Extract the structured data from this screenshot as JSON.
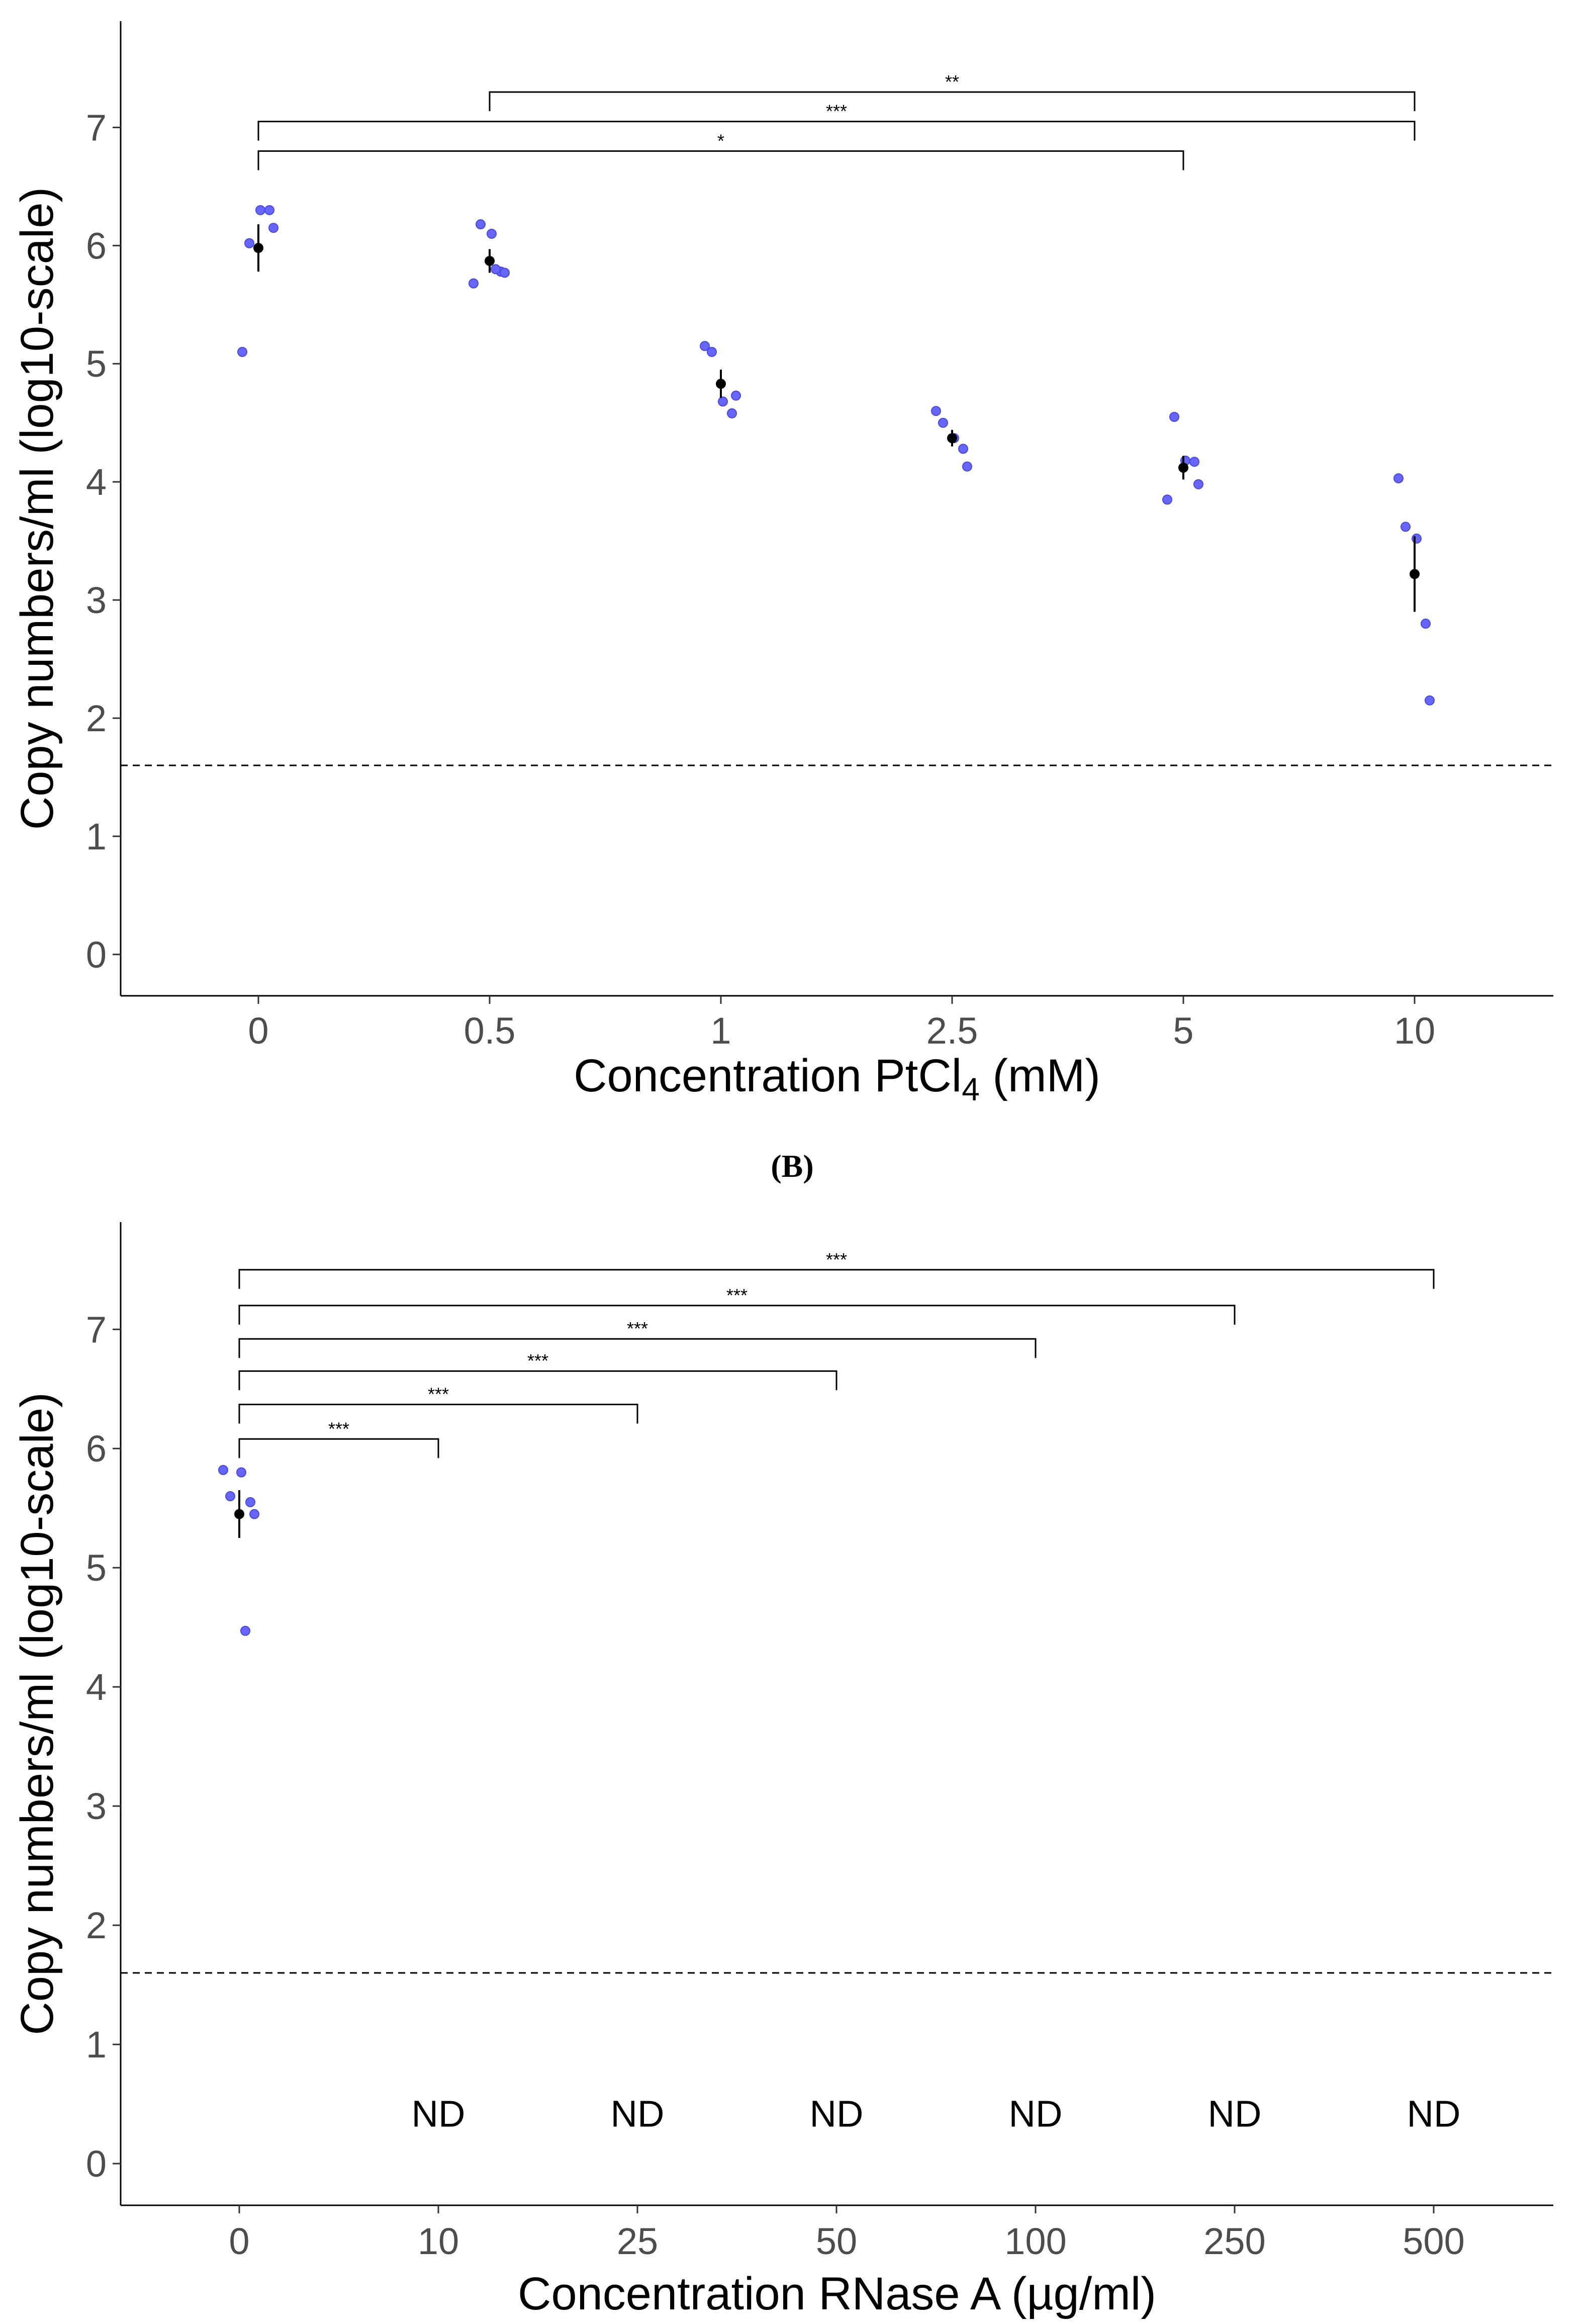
{
  "panel_b_label": "(B)",
  "chart_data": [
    {
      "type": "scatter",
      "title": "",
      "xlabel": "Concentration PtCl",
      "xlabel_sub": "4",
      "xlabel_suffix": " (mM)",
      "ylabel": "Copy numbers/ml (log10-scale)",
      "ylim": [
        -0.35,
        7.9
      ],
      "yticks": [
        "0",
        "1",
        "2",
        "3",
        "4",
        "5",
        "6",
        "7"
      ],
      "categories": [
        "0",
        "0.5",
        "1",
        "2.5",
        "5",
        "10"
      ],
      "detection_limit": 1.6,
      "point_color": "#6666ff",
      "mean_color": "#000000",
      "points": [
        [
          5.1,
          6.02,
          6.3,
          6.3,
          6.15
        ],
        [
          5.68,
          6.18,
          6.1,
          5.78,
          5.77,
          5.8
        ],
        [
          5.15,
          5.1,
          4.68,
          4.58,
          4.73
        ],
        [
          4.6,
          4.5,
          4.37,
          4.28,
          4.13
        ],
        [
          3.85,
          4.55,
          4.18,
          4.17,
          3.98
        ],
        [
          4.03,
          3.62,
          3.52,
          2.8,
          2.15
        ]
      ],
      "means": [
        5.98,
        5.87,
        4.83,
        4.37,
        4.12,
        3.22
      ],
      "errors": [
        0.2,
        0.1,
        0.12,
        0.07,
        0.1,
        0.32
      ],
      "comparisons": [
        {
          "from": 1,
          "to": 5,
          "label": "**",
          "y": 7.3
        },
        {
          "from": 0,
          "to": 5,
          "label": "***",
          "y": 7.05
        },
        {
          "from": 0,
          "to": 4,
          "label": "*",
          "y": 6.8
        }
      ],
      "category_annotations": []
    },
    {
      "type": "scatter",
      "title": "",
      "xlabel": "Concentration RNase A (µg/ml)",
      "xlabel_sub": "",
      "xlabel_suffix": "",
      "ylabel": "Copy numbers/ml (log10-scale)",
      "ylim": [
        -0.35,
        7.9
      ],
      "yticks": [
        "0",
        "1",
        "2",
        "3",
        "4",
        "5",
        "6",
        "7"
      ],
      "categories": [
        "0",
        "10",
        "25",
        "50",
        "100",
        "250",
        "500"
      ],
      "detection_limit": 1.6,
      "point_color": "#6666ff",
      "mean_color": "#000000",
      "points": [
        [
          5.82,
          5.6,
          5.8,
          5.55,
          5.45,
          4.47
        ],
        [],
        [],
        [],
        [],
        [],
        []
      ],
      "means": [
        5.45,
        null,
        null,
        null,
        null,
        null,
        null
      ],
      "errors": [
        0.2,
        null,
        null,
        null,
        null,
        null,
        null
      ],
      "comparisons": [
        {
          "from": 0,
          "to": 6,
          "label": "***",
          "y": 7.5
        },
        {
          "from": 0,
          "to": 5,
          "label": "***",
          "y": 7.2
        },
        {
          "from": 0,
          "to": 4,
          "label": "***",
          "y": 6.92
        },
        {
          "from": 0,
          "to": 3,
          "label": "***",
          "y": 6.65
        },
        {
          "from": 0,
          "to": 2,
          "label": "***",
          "y": 6.37
        },
        {
          "from": 0,
          "to": 1,
          "label": "***",
          "y": 6.08
        }
      ],
      "category_annotations": [
        "",
        "ND",
        "ND",
        "ND",
        "ND",
        "ND",
        "ND"
      ]
    }
  ]
}
